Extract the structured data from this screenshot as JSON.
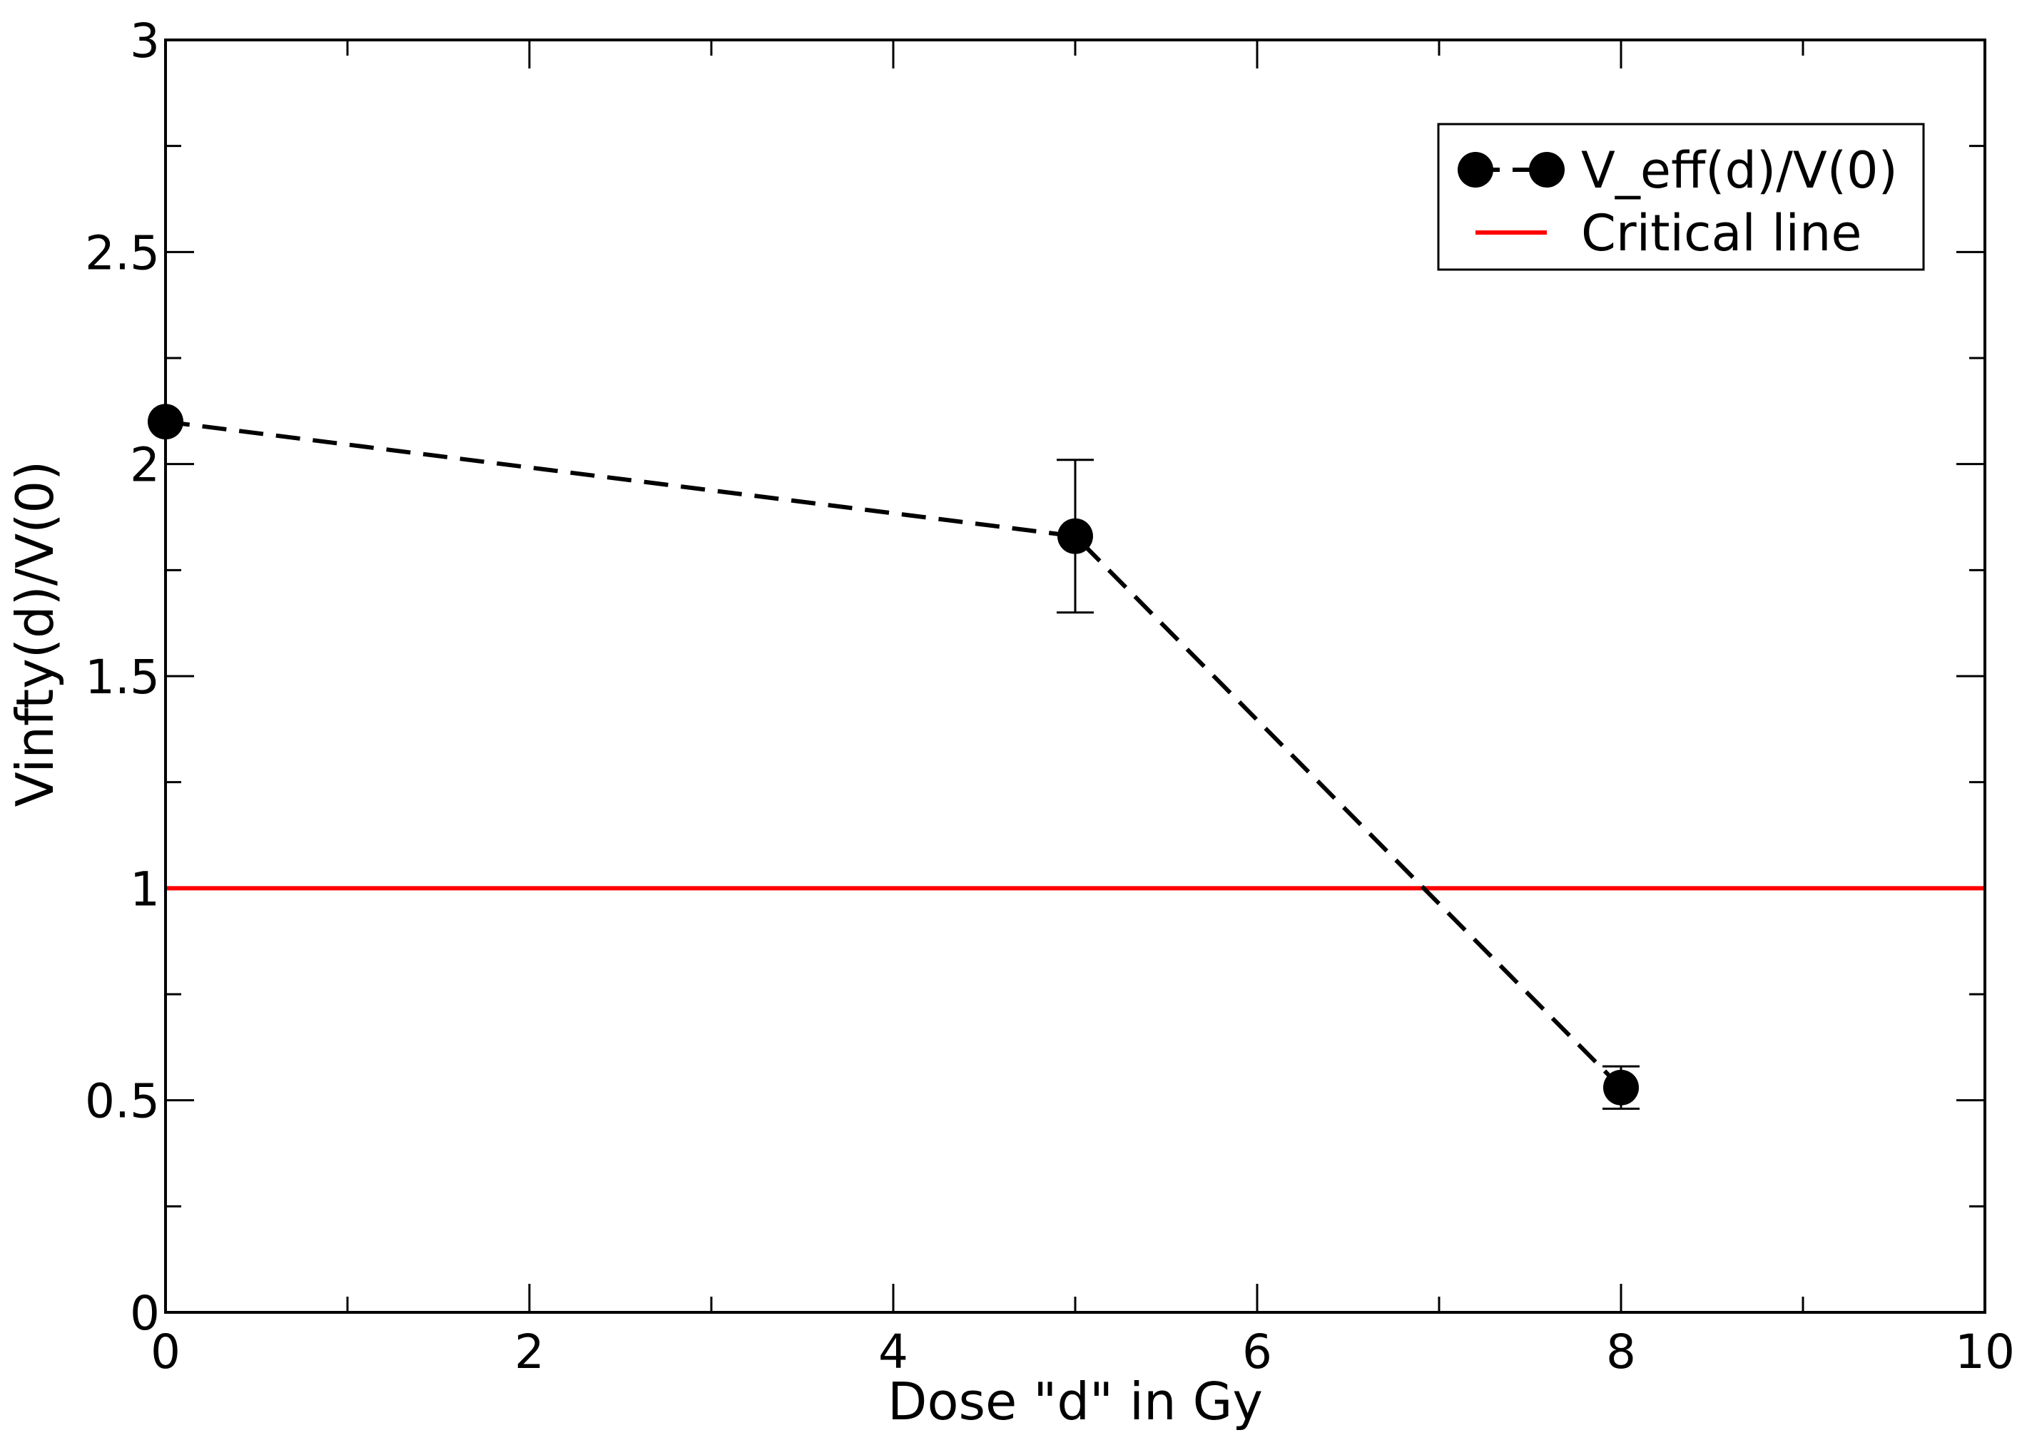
{
  "chart_data": {
    "type": "line",
    "xlabel": "Dose \"d\" in Gy",
    "ylabel": "Vinfty(d)/V(0)",
    "xlim": [
      0,
      10
    ],
    "ylim": [
      0,
      3
    ],
    "x_ticks": [
      0,
      2,
      4,
      6,
      8,
      10
    ],
    "x_tick_labels": [
      "0",
      "2",
      "4",
      "6",
      "8",
      "10"
    ],
    "y_ticks": [
      0,
      0.5,
      1,
      1.5,
      2,
      2.5,
      3
    ],
    "y_tick_labels": [
      "0",
      "0.5",
      "1",
      "1.5",
      "2",
      "2.5",
      "3"
    ],
    "grid": false,
    "legend_position": "top-right",
    "series": [
      {
        "name": "V_eff(d)/V(0)",
        "style": "dashed line with circle markers",
        "color": "#000000",
        "x": [
          0,
          5,
          8
        ],
        "y": [
          2.1,
          1.83,
          0.53
        ],
        "error": [
          0,
          0.18,
          0.05
        ]
      },
      {
        "name": "Critical line",
        "style": "solid line",
        "color": "#ff0000",
        "x": [
          0,
          10
        ],
        "y": [
          1,
          1
        ]
      }
    ]
  }
}
